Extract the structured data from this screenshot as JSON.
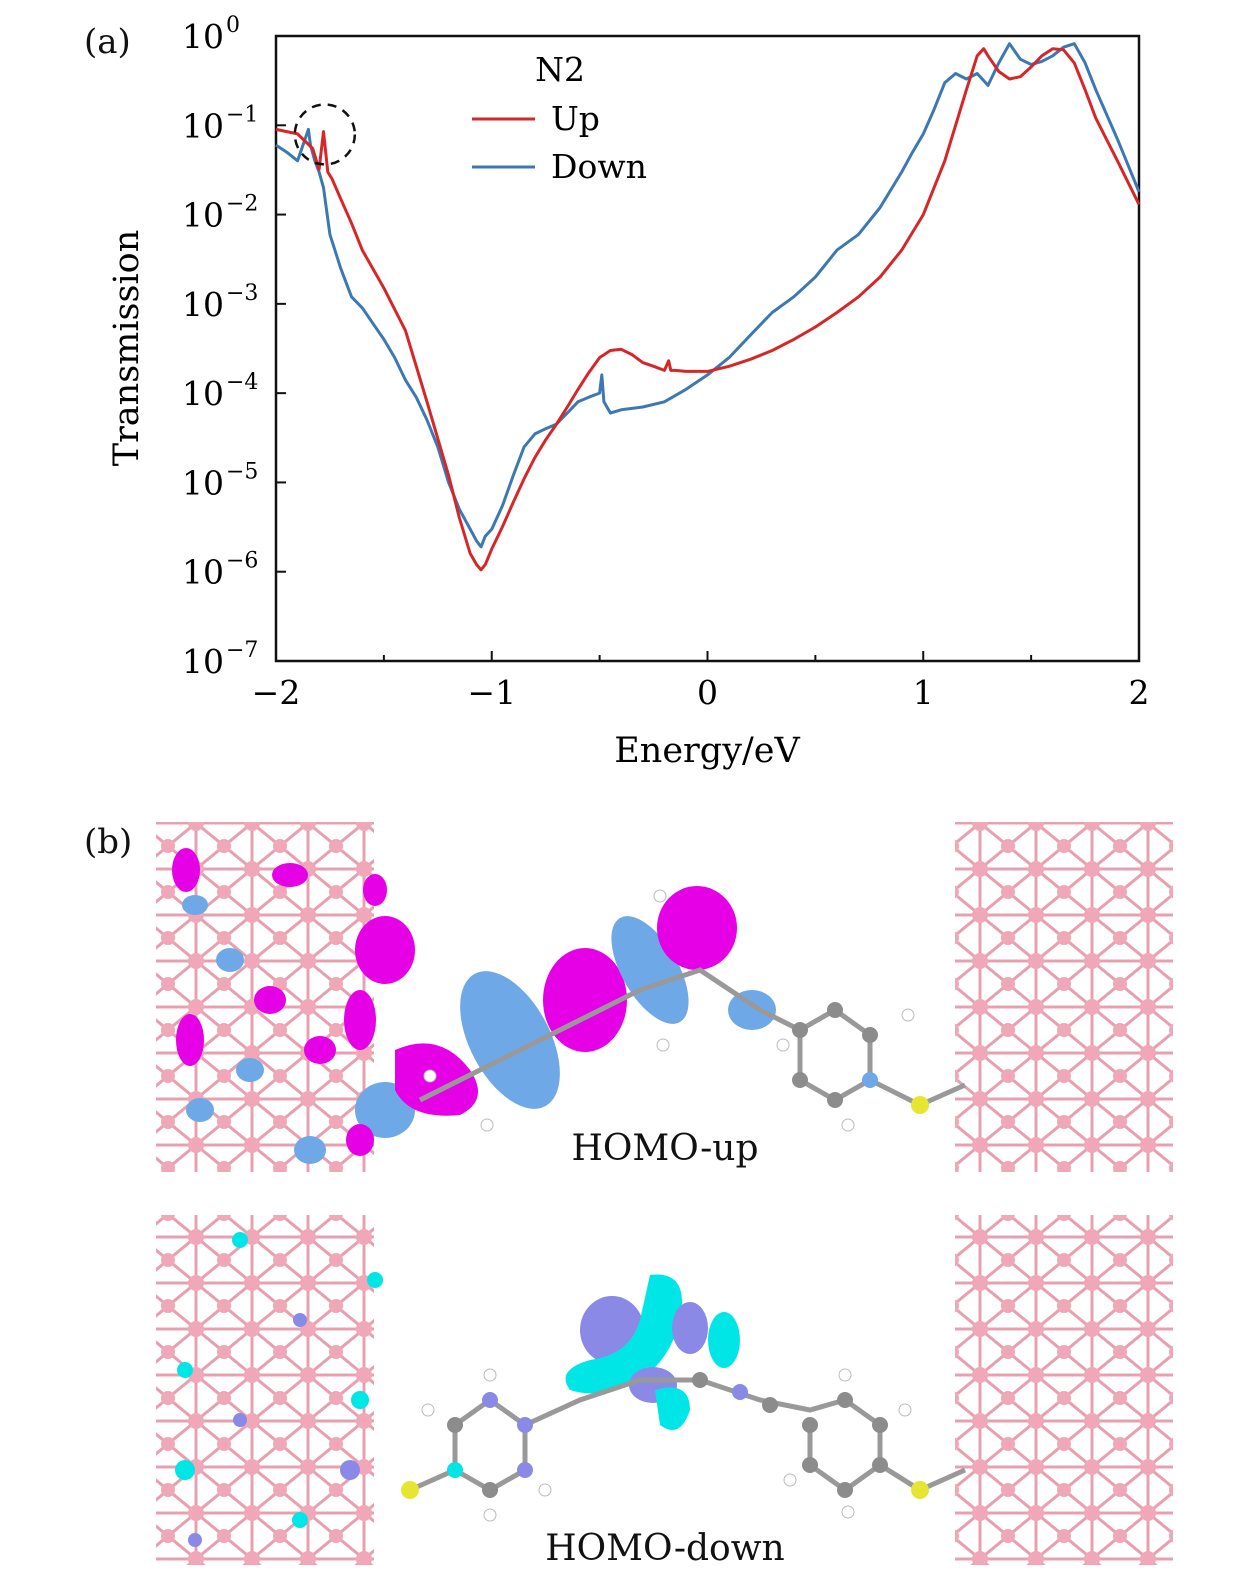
{
  "panel_a_label": "(a)",
  "panel_b_label": "(b)",
  "chart_data": {
    "type": "line",
    "xlabel": "Energy/eV",
    "ylabel": "Transmission",
    "xlim": [
      -2,
      2
    ],
    "ylim_log10": [
      -7,
      0
    ],
    "yscale": "log",
    "xticks": [
      "−2",
      "−1",
      "0",
      "1",
      "2"
    ],
    "yticks": [
      "10^0",
      "10^−1",
      "10^−2",
      "10^−3",
      "10^−4",
      "10^−5",
      "10^−6",
      "10^−7"
    ],
    "legend": {
      "title": "N2",
      "placement": "top-center"
    },
    "annotations": [
      {
        "type": "dashed-circle",
        "x": -1.82,
        "y": 0.075
      }
    ],
    "colors": {
      "up": "#d62728",
      "down": "#3c78b4"
    },
    "series": [
      {
        "name": "Up",
        "x": [
          -2.0,
          -1.9,
          -1.83,
          -1.8,
          -1.78,
          -1.76,
          -1.74,
          -1.7,
          -1.65,
          -1.6,
          -1.5,
          -1.4,
          -1.3,
          -1.2,
          -1.15,
          -1.1,
          -1.07,
          -1.05,
          -1.03,
          -1.0,
          -0.95,
          -0.9,
          -0.85,
          -0.8,
          -0.75,
          -0.7,
          -0.65,
          -0.6,
          -0.55,
          -0.5,
          -0.45,
          -0.4,
          -0.35,
          -0.3,
          -0.25,
          -0.2,
          -0.18,
          -0.17,
          -0.15,
          -0.1,
          0.0,
          0.1,
          0.2,
          0.3,
          0.4,
          0.5,
          0.6,
          0.7,
          0.8,
          0.9,
          1.0,
          1.1,
          1.15,
          1.2,
          1.25,
          1.28,
          1.3,
          1.35,
          1.4,
          1.45,
          1.5,
          1.55,
          1.6,
          1.65,
          1.7,
          1.75,
          1.8,
          1.9,
          2.0
        ],
        "y": [
          0.09,
          0.08,
          0.055,
          0.032,
          0.085,
          0.03,
          0.025,
          0.015,
          0.008,
          0.004,
          0.0015,
          0.0005,
          8e-05,
          1.2e-05,
          4e-06,
          1.6e-06,
          1.2e-06,
          1.05e-06,
          1.2e-06,
          1.8e-06,
          3.2e-06,
          6e-06,
          1.1e-05,
          1.9e-05,
          3e-05,
          4.5e-05,
          7e-05,
          0.00011,
          0.00017,
          0.00025,
          0.0003,
          0.00031,
          0.00027,
          0.00022,
          0.0002,
          0.00018,
          0.00023,
          0.00018,
          0.00018,
          0.000175,
          0.000175,
          0.0002,
          0.00024,
          0.0003,
          0.0004,
          0.00055,
          0.0008,
          0.0012,
          0.002,
          0.004,
          0.01,
          0.04,
          0.1,
          0.25,
          0.6,
          0.72,
          0.6,
          0.4,
          0.33,
          0.35,
          0.45,
          0.6,
          0.72,
          0.7,
          0.5,
          0.25,
          0.12,
          0.04,
          0.013
        ]
      },
      {
        "name": "Down",
        "x": [
          -2.0,
          -1.95,
          -1.9,
          -1.85,
          -1.84,
          -1.82,
          -1.8,
          -1.78,
          -1.75,
          -1.7,
          -1.65,
          -1.6,
          -1.55,
          -1.5,
          -1.45,
          -1.4,
          -1.35,
          -1.3,
          -1.25,
          -1.2,
          -1.15,
          -1.1,
          -1.07,
          -1.05,
          -1.03,
          -1.0,
          -0.95,
          -0.9,
          -0.85,
          -0.8,
          -0.75,
          -0.7,
          -0.65,
          -0.6,
          -0.55,
          -0.5,
          -0.49,
          -0.48,
          -0.45,
          -0.4,
          -0.3,
          -0.2,
          -0.1,
          0.0,
          0.1,
          0.2,
          0.3,
          0.4,
          0.5,
          0.6,
          0.7,
          0.8,
          0.9,
          0.95,
          1.0,
          1.05,
          1.1,
          1.15,
          1.2,
          1.25,
          1.3,
          1.35,
          1.4,
          1.45,
          1.5,
          1.55,
          1.6,
          1.65,
          1.7,
          1.75,
          1.8,
          1.9,
          2.0
        ],
        "y": [
          0.06,
          0.05,
          0.04,
          0.09,
          0.06,
          0.04,
          0.03,
          0.02,
          0.006,
          0.0025,
          0.0012,
          0.0009,
          0.0006,
          0.0004,
          0.00025,
          0.00014,
          9e-05,
          5e-05,
          2.5e-05,
          1e-05,
          5e-06,
          3e-06,
          2.2e-06,
          1.9e-06,
          2.5e-06,
          3e-06,
          5.5e-06,
          1.2e-05,
          2.5e-05,
          3.5e-05,
          4e-05,
          4.5e-05,
          6e-05,
          8e-05,
          9e-05,
          0.0001,
          0.00016,
          8e-05,
          6e-05,
          6.5e-05,
          7e-05,
          8e-05,
          0.00011,
          0.00016,
          0.00025,
          0.00045,
          0.0008,
          0.0012,
          0.002,
          0.004,
          0.006,
          0.012,
          0.03,
          0.05,
          0.08,
          0.15,
          0.3,
          0.38,
          0.33,
          0.38,
          0.28,
          0.5,
          0.82,
          0.55,
          0.48,
          0.52,
          0.6,
          0.75,
          0.82,
          0.5,
          0.25,
          0.07,
          0.018
        ]
      }
    ]
  },
  "homo_up_label": "HOMO-up",
  "homo_down_label": "HOMO-down",
  "orbital_colors": {
    "up_positive": "#e600e6",
    "up_negative": "#6fa8e6",
    "down_positive": "#00e6e6",
    "down_negative": "#8a8ae6",
    "electrode": "#e8a0b0",
    "carbon": "#8c8c8c",
    "hydrogen": "#ffffff",
    "sulfur": "#e6e632",
    "nitrogen": "#8888ee"
  }
}
